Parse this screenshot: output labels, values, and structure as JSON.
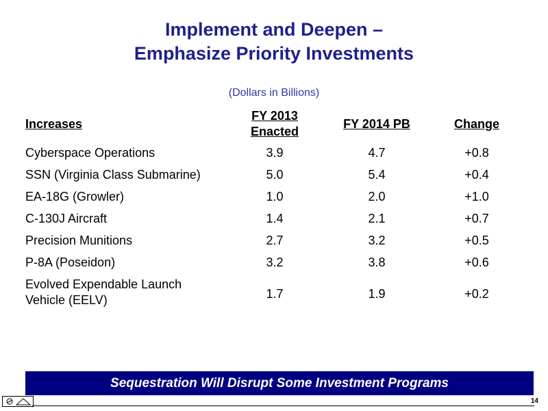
{
  "slide": {
    "title_line1": "Implement and Deepen –",
    "title_line2": "Emphasize Priority Investments",
    "subtitle": "(Dollars in Billions)",
    "page_number": "14"
  },
  "table": {
    "headers": {
      "col0": "Increases",
      "col1_line1": "FY 2013",
      "col1_line2": "Enacted",
      "col2": "FY 2014 PB",
      "col3": "Change"
    },
    "rows": [
      {
        "name_line1": "Cyberspace Operations",
        "name_line2": "",
        "fy2013": "3.9",
        "fy2014": "4.7",
        "change": "+0.8"
      },
      {
        "name_line1": "SSN (Virginia Class Submarine)",
        "name_line2": "",
        "fy2013": "5.0",
        "fy2014": "5.4",
        "change": "+0.4"
      },
      {
        "name_line1": "EA-18G (Growler)",
        "name_line2": "",
        "fy2013": "1.0",
        "fy2014": "2.0",
        "change": "+1.0"
      },
      {
        "name_line1": "C-130J Aircraft",
        "name_line2": "",
        "fy2013": "1.4",
        "fy2014": "2.1",
        "change": "+0.7"
      },
      {
        "name_line1": "Precision Munitions",
        "name_line2": "",
        "fy2013": "2.7",
        "fy2014": "3.2",
        "change": "+0.5"
      },
      {
        "name_line1": "P-8A (Poseidon)",
        "name_line2": "",
        "fy2013": "3.2",
        "fy2014": "3.8",
        "change": "+0.6"
      },
      {
        "name_line1": "Evolved Expendable Launch",
        "name_line2": "Vehicle (EELV)",
        "fy2013": "1.7",
        "fy2014": "1.9",
        "change": "+0.2"
      }
    ]
  },
  "banner": {
    "text": "Sequestration Will Disrupt Some Investment Programs",
    "background_color": "#000080"
  },
  "colors": {
    "title": "#1f1f8c",
    "subtitle": "#3333aa"
  }
}
